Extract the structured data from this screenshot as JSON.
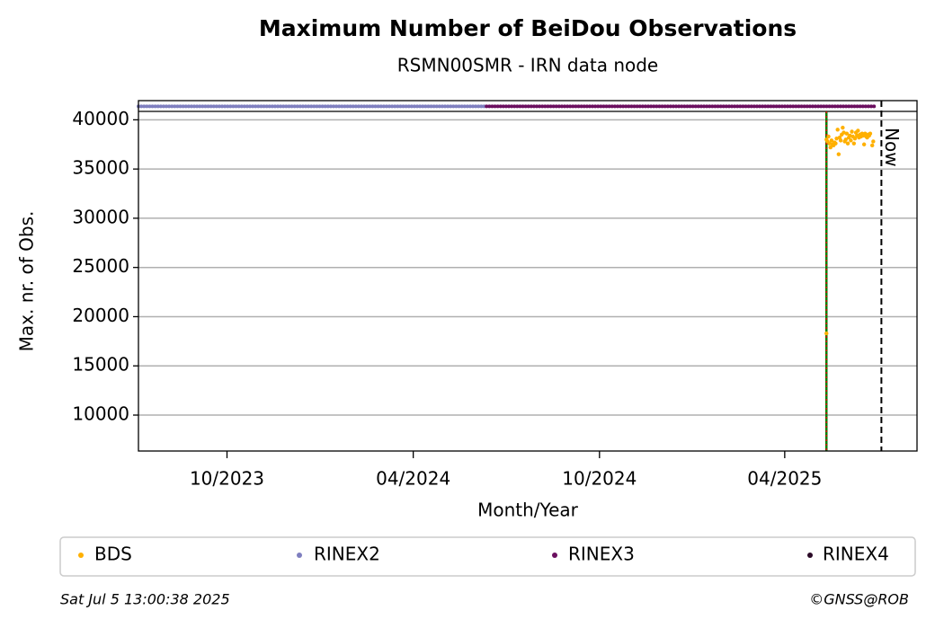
{
  "chart_data": {
    "type": "scatter",
    "title": "Maximum Number of BeiDou Observations",
    "subtitle": "RSMN00SMR - IRN data node",
    "x_label": "Month/Year",
    "y_label": "Max. nr. of Obs.",
    "xlim": [
      "2023-07-06",
      "2025-08-09"
    ],
    "ylim": [
      6350,
      41950
    ],
    "xticks": [
      {
        "value": "2023-10-01",
        "label": "10/2023"
      },
      {
        "value": "2024-04-01",
        "label": "04/2024"
      },
      {
        "value": "2024-10-01",
        "label": "10/2024"
      },
      {
        "value": "2025-04-01",
        "label": "04/2025"
      }
    ],
    "yticks": [
      10000,
      15000,
      20000,
      25000,
      30000,
      35000,
      40000
    ],
    "grid": true,
    "vline": {
      "x": "2025-05-12",
      "color": "#008000",
      "dash_color": "#e00000"
    },
    "now_line": {
      "x": "2025-07-05",
      "label": "Now"
    },
    "series": [
      {
        "name": "BDS",
        "color": "#ffb000",
        "style": "points",
        "x": [
          "2025-05-12",
          "2025-05-12",
          "2025-05-13",
          "2025-05-14",
          "2025-05-15",
          "2025-05-16",
          "2025-05-17",
          "2025-05-18",
          "2025-05-19",
          "2025-05-20",
          "2025-05-21",
          "2025-05-22",
          "2025-05-23",
          "2025-05-24",
          "2025-05-25",
          "2025-05-26",
          "2025-05-27",
          "2025-05-28",
          "2025-05-29",
          "2025-05-30",
          "2025-05-31",
          "2025-06-01",
          "2025-06-02",
          "2025-06-03",
          "2025-06-04",
          "2025-06-05",
          "2025-06-06",
          "2025-06-07",
          "2025-06-08",
          "2025-06-09",
          "2025-06-10",
          "2025-06-11",
          "2025-06-12",
          "2025-06-13",
          "2025-06-14",
          "2025-06-15",
          "2025-06-16",
          "2025-06-17",
          "2025-06-18",
          "2025-06-19",
          "2025-06-20",
          "2025-06-21",
          "2025-06-22",
          "2025-06-23",
          "2025-06-24",
          "2025-06-26",
          "2025-06-27"
        ],
        "values": [
          18300,
          38000,
          37800,
          38300,
          37600,
          37200,
          37900,
          37500,
          37400,
          37700,
          37600,
          38100,
          39000,
          36500,
          38200,
          37900,
          38500,
          39200,
          38700,
          37800,
          38000,
          38600,
          37600,
          38200,
          38400,
          37900,
          38800,
          38300,
          37600,
          38100,
          38700,
          38400,
          38900,
          38200,
          38500,
          38300,
          38600,
          38400,
          37500,
          38600,
          38300,
          38200,
          38500,
          38400,
          38600,
          37400,
          37800
        ]
      },
      {
        "name": "RINEX2",
        "color": "#7f7fbf",
        "style": "strip",
        "x": [
          "2023-07-06",
          "2024-06-12"
        ],
        "values": [
          41370,
          41370
        ]
      },
      {
        "name": "RINEX3",
        "color": "#6b0f5f",
        "style": "strip",
        "x": [
          "2024-06-12",
          "2025-06-30"
        ],
        "values": [
          41370,
          41370
        ]
      },
      {
        "name": "RINEX4",
        "color": "#2b0a27",
        "style": "strip",
        "x": [],
        "values": []
      }
    ],
    "timestamp": "Sat Jul  5 13:00:38 2025",
    "credit": "©GNSS@ROB"
  }
}
